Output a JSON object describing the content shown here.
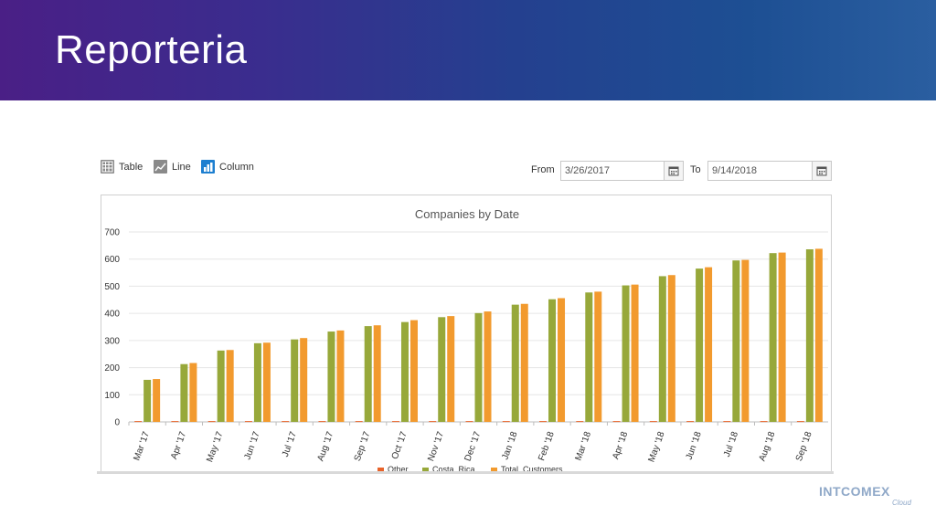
{
  "banner": {
    "title": "Reporteria"
  },
  "toolbar": {
    "table_label": "Table",
    "line_label": "Line",
    "column_label": "Column",
    "from_label": "From",
    "from_value": "3/26/2017",
    "to_label": "To",
    "to_value": "9/14/2018"
  },
  "logo": {
    "name": "INTCOMEX",
    "sub": "Cloud"
  },
  "colors": {
    "other": "#e8632a",
    "costa_rica": "#97a83a",
    "total_customers": "#f29a2e",
    "banner_start": "#4a1f86",
    "banner_end": "#2a5ea0"
  },
  "chart_data": {
    "type": "bar",
    "title": "Companies by Date",
    "categories": [
      "Mar '17",
      "Apr '17",
      "May '17",
      "Jun '17",
      "Jul '17",
      "Aug '17",
      "Sep '17",
      "Oct '17",
      "Nov '17",
      "Dec '17",
      "Jan '18",
      "Feb '18",
      "Mar '18",
      "Apr '18",
      "May '18",
      "Jun '18",
      "Jul '18",
      "Aug '18",
      "Sep '18"
    ],
    "ylim": [
      0,
      700
    ],
    "yticks": [
      0,
      100,
      200,
      300,
      400,
      500,
      600,
      700
    ],
    "grid": true,
    "legend": "bottom",
    "series": [
      {
        "name": "Other",
        "color": "#e8632a",
        "values": [
          3,
          3,
          3,
          3,
          3,
          3,
          3,
          3,
          3,
          3,
          3,
          3,
          3,
          3,
          3,
          3,
          3,
          3,
          3
        ]
      },
      {
        "name": "Costa_Rica",
        "color": "#97a83a",
        "values": [
          155,
          213,
          263,
          290,
          304,
          333,
          353,
          368,
          386,
          401,
          432,
          452,
          477,
          503,
          537,
          565,
          595,
          622,
          636
        ]
      },
      {
        "name": "Total_Customers",
        "color": "#f29a2e",
        "values": [
          158,
          217,
          265,
          292,
          309,
          337,
          356,
          375,
          390,
          407,
          435,
          456,
          480,
          506,
          541,
          570,
          597,
          624,
          638
        ]
      }
    ]
  }
}
